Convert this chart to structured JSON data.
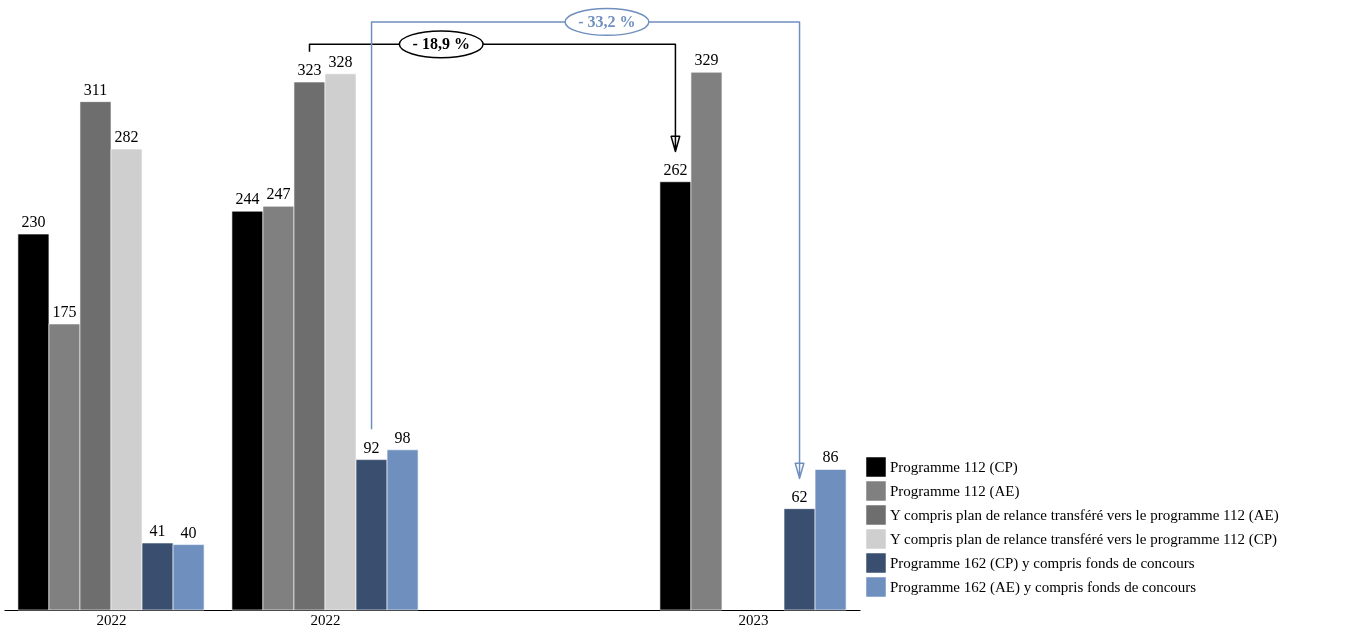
{
  "chart_data": {
    "type": "bar",
    "categories": [
      "2022",
      "2022",
      null,
      "2023"
    ],
    "series": [
      {
        "name": "Programme 112 (CP)",
        "color": "#000000",
        "values": [
          230,
          244,
          null,
          262
        ]
      },
      {
        "name": "Programme 112 (AE)",
        "color": "#808080",
        "values": [
          175,
          247,
          null,
          329
        ]
      },
      {
        "name": "Y compris plan de relance transféré vers le programme 112 (AE)",
        "color": "#6e6e6e",
        "values": [
          311,
          323,
          null,
          null
        ]
      },
      {
        "name": "Y compris plan de relance transféré vers le programme 112 (CP)",
        "color": "#cfcfcf",
        "values": [
          282,
          328,
          null,
          null
        ]
      },
      {
        "name": "Programme 162 (CP) y compris fonds de concours",
        "color": "#3a4f70",
        "values": [
          41,
          92,
          null,
          62
        ]
      },
      {
        "name": "Programme 162 (AE) y compris fonds de concours",
        "color": "#6f8fbf",
        "values": [
          40,
          98,
          null,
          86
        ]
      }
    ],
    "data_labels": true,
    "legend": "bottom right",
    "annotations": [
      "- 18,9 %",
      "- 33,2 %"
    ]
  }
}
